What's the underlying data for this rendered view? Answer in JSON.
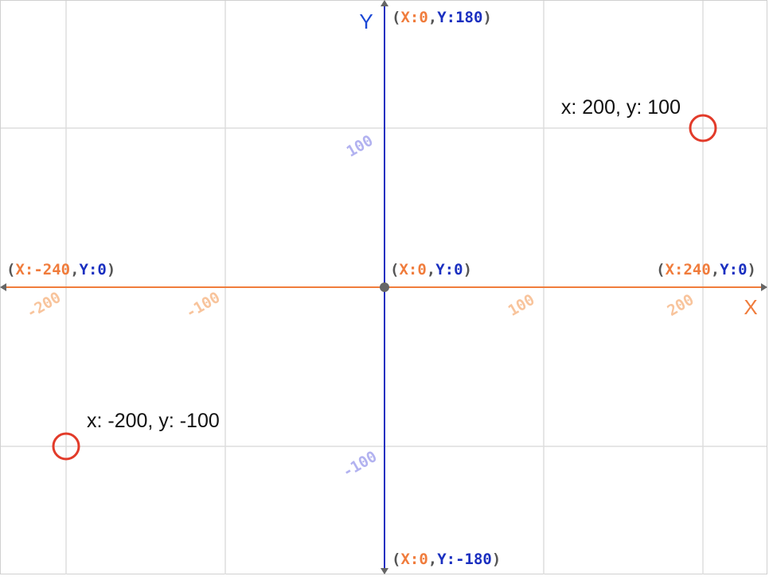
{
  "colors": {
    "x_axis": "#f07c3c",
    "y_axis": "#1a2fc0",
    "y_word": "#1a47d6",
    "grid": "#dddddd",
    "paren": "#555555",
    "tick_x": "#f8c49c",
    "tick_y": "#b2b2f0",
    "marker": "#e23b2a",
    "frame": "#d0d0d0"
  },
  "axes": {
    "x_letter": "X",
    "y_letter": "Y",
    "x_range": [
      -240,
      240
    ],
    "y_range": [
      -180,
      180
    ],
    "grid_step": 100
  },
  "x_ticks": [
    {
      "value": -200,
      "label": "-200"
    },
    {
      "value": -100,
      "label": "-100"
    },
    {
      "value": 100,
      "label": "100"
    },
    {
      "value": 200,
      "label": "200"
    }
  ],
  "y_ticks": [
    {
      "value": 100,
      "label": "100"
    },
    {
      "value": -100,
      "label": "-100"
    }
  ],
  "coord_labels": {
    "top": {
      "x": "X:0",
      "y": "Y:180"
    },
    "bottom": {
      "x": "X:0",
      "y": "Y:-180"
    },
    "left": {
      "x": "X:-240",
      "y": "Y:0"
    },
    "right": {
      "x": "X:240",
      "y": "Y:0"
    },
    "origin": {
      "x": "X:0",
      "y": "Y:0"
    }
  },
  "points": [
    {
      "x": 200,
      "y": 100,
      "label": "x: 200, y: 100"
    },
    {
      "x": -200,
      "y": -100,
      "label": "x: -200, y: -100"
    }
  ]
}
